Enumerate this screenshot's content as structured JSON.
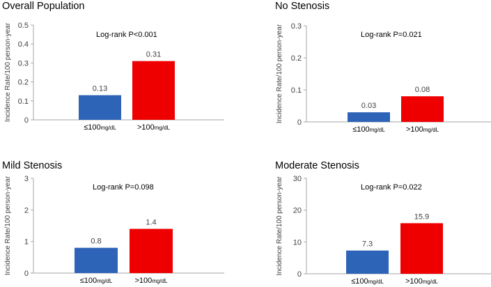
{
  "colors": {
    "low": "#2e64b7",
    "high": "#ee0000",
    "axis": "#a6a6a6",
    "text": "#404040",
    "title": "#000000"
  },
  "chart_data": [
    {
      "type": "bar",
      "title": "Overall Population",
      "ylabel": "Incidence Rate/100 person-year",
      "annotation": "Log-rank P<0.001",
      "ylim": [
        0,
        0.5
      ],
      "yticks": [
        "0",
        "0.1",
        "0.2",
        "0.3",
        "0.4",
        "0.5"
      ],
      "categories": [
        {
          "prefix": "≤100",
          "unit": "mg/dL"
        },
        {
          "prefix": ">100",
          "unit": "mg/dL"
        }
      ],
      "values": [
        0.13,
        0.31
      ],
      "value_labels": [
        "0.13",
        "0.31"
      ]
    },
    {
      "type": "bar",
      "title": "No Stenosis",
      "ylabel": "Incidence Rate/100 person-year",
      "annotation": "Log-rank P=0.021",
      "ylim": [
        0,
        0.3
      ],
      "yticks": [
        "0",
        "0.1",
        "0.2",
        "0.3"
      ],
      "categories": [
        {
          "prefix": "≤100",
          "unit": "mg/dL"
        },
        {
          "prefix": ">100",
          "unit": "mg/dL"
        }
      ],
      "values": [
        0.03,
        0.08
      ],
      "value_labels": [
        "0.03",
        "0.08"
      ]
    },
    {
      "type": "bar",
      "title": "Mild Stenosis",
      "ylabel": "Incidence Rate/100 person-year",
      "annotation": "Log-rank P=0.098",
      "ylim": [
        0,
        3
      ],
      "yticks": [
        "0",
        "1",
        "2",
        "3"
      ],
      "categories": [
        {
          "prefix": "≤100",
          "unit": "mg/dL"
        },
        {
          "prefix": ">100",
          "unit": "mg/dL"
        }
      ],
      "values": [
        0.8,
        1.4
      ],
      "value_labels": [
        "0.8",
        "1.4"
      ]
    },
    {
      "type": "bar",
      "title": "Moderate Stenosis",
      "ylabel": "Incidence Rate/100 person-year",
      "annotation": "Log-rank P=0.022",
      "ylim": [
        0,
        30
      ],
      "yticks": [
        "0",
        "10",
        "20",
        "30"
      ],
      "categories": [
        {
          "prefix": "≤100",
          "unit": "mg/dL"
        },
        {
          "prefix": ">100",
          "unit": "mg/dL"
        }
      ],
      "values": [
        7.3,
        15.9
      ],
      "value_labels": [
        "7.3",
        "15.9"
      ]
    }
  ]
}
